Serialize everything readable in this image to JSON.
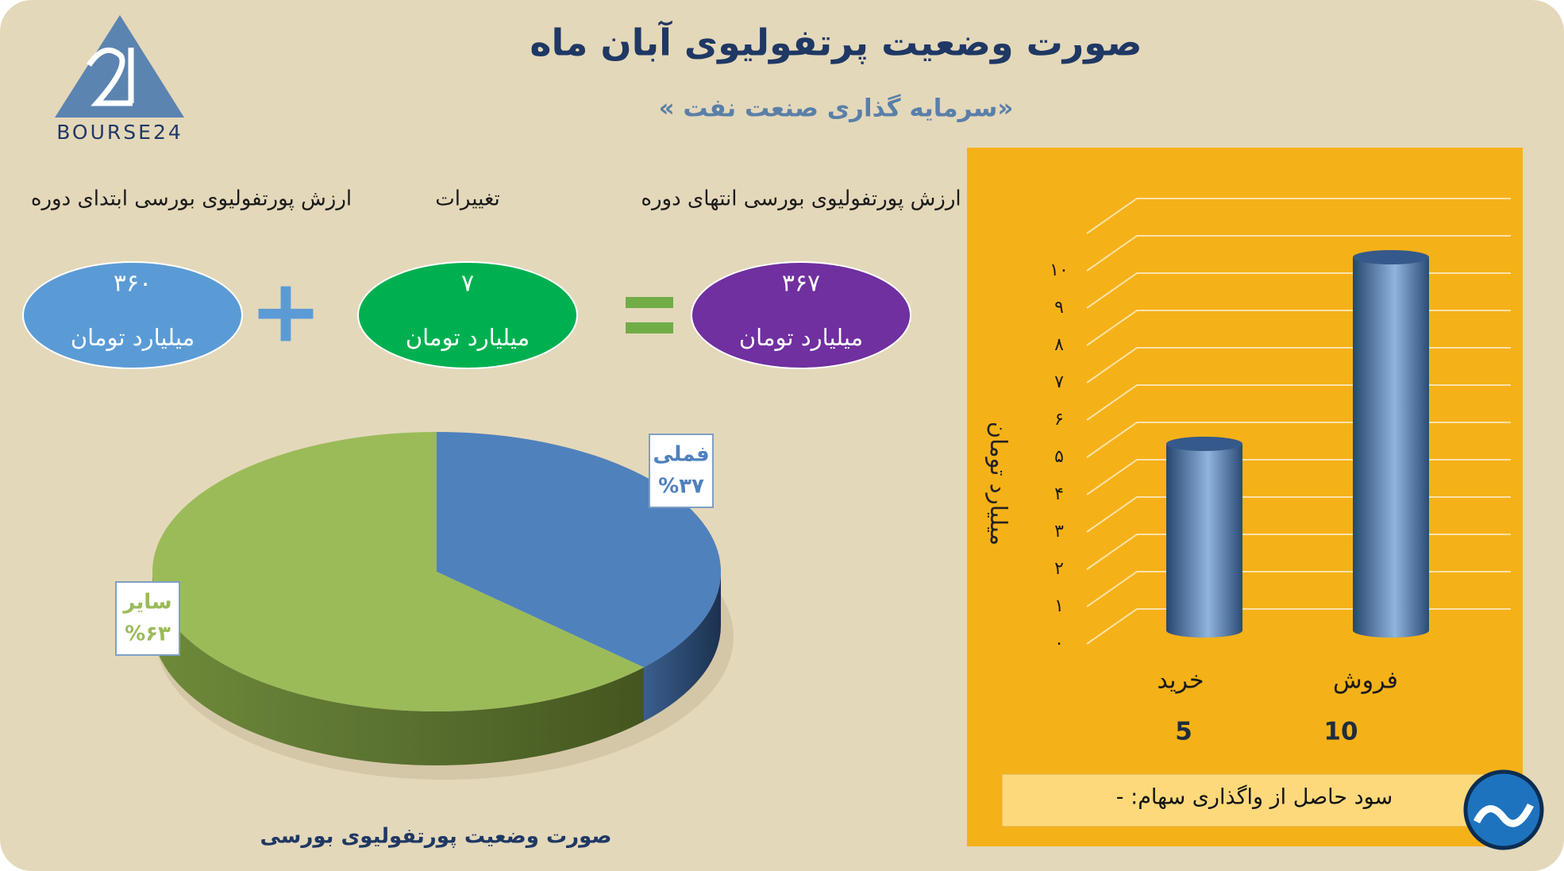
{
  "header": {
    "title": "صورت وضعیت پرتفولیوی آبان ماه",
    "subtitle": "«سرمایه گذاری صنعت نفت »",
    "logo_text": "BOURSE24"
  },
  "summary": {
    "items": [
      {
        "heading": "ارزش پورتفولیوی بورسی ابتدای دوره",
        "value": "۳۶۰",
        "unit": "میلیارد تومان",
        "color": "#5b9bd5"
      },
      {
        "heading": "تغییرات",
        "value": "۷",
        "unit": "میلیارد تومان",
        "color": "#00b050"
      },
      {
        "heading": "ارزش پورتفولیوی بورسی انتهای دوره",
        "value": "۳۶۷",
        "unit": "میلیارد تومان",
        "color": "#7030a0"
      }
    ]
  },
  "chart_data": [
    {
      "type": "pie",
      "title": "صورت وضعیت پورتفولیوی بورسی",
      "categories": [
        "فملی",
        "سایر"
      ],
      "values": [
        37,
        63
      ],
      "value_labels": [
        "%۳۷",
        "%۶۳"
      ],
      "colors": [
        "#4f81bd",
        "#9bbb59"
      ]
    },
    {
      "type": "bar",
      "ylabel": "میلیارد تومان",
      "categories": [
        "خرید",
        "فروش"
      ],
      "values": [
        5,
        10
      ],
      "color": "#4f81bd",
      "ylim": [
        0,
        11
      ],
      "yticks": [
        {
          "value": 0,
          "label": "۰"
        },
        {
          "value": 1,
          "label": "۱"
        },
        {
          "value": 2,
          "label": "۲"
        },
        {
          "value": 3,
          "label": "۳"
        },
        {
          "value": 4,
          "label": "۴"
        },
        {
          "value": 5,
          "label": "۵"
        },
        {
          "value": 6,
          "label": "۶"
        },
        {
          "value": 7,
          "label": "۷"
        },
        {
          "value": 8,
          "label": "۸"
        },
        {
          "value": 9,
          "label": "۹"
        },
        {
          "value": 10,
          "label": "۱۰"
        }
      ],
      "grid": true
    }
  ],
  "footer": {
    "text": "سود حاصل از واگذاری سهام: -"
  }
}
